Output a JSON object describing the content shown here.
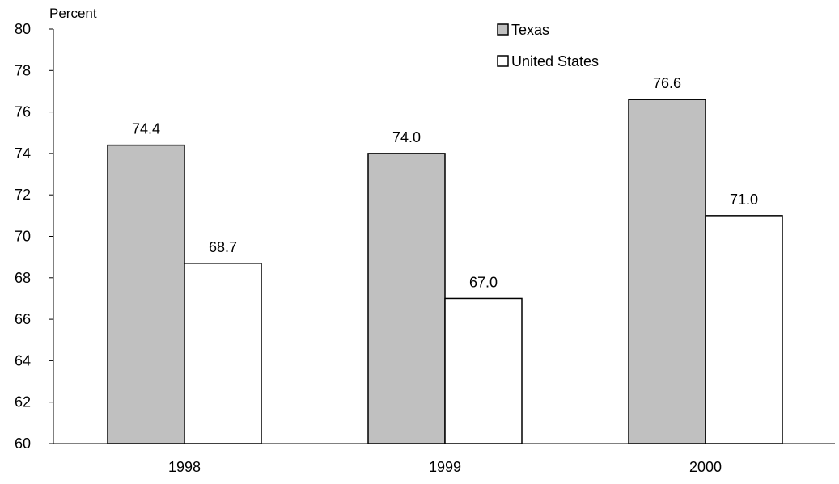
{
  "chart_data": {
    "type": "bar",
    "title": "",
    "xlabel": "",
    "ylabel": "Percent",
    "ylim": [
      60,
      80
    ],
    "yticks": [
      60,
      62,
      64,
      66,
      68,
      70,
      72,
      74,
      76,
      78,
      80
    ],
    "categories": [
      "1998",
      "1999",
      "2000"
    ],
    "series": [
      {
        "name": "Texas",
        "values": [
          74.4,
          74.0,
          76.6
        ],
        "labels": [
          "74.4",
          "74.0",
          "76.6"
        ],
        "color": "#c0c0c0"
      },
      {
        "name": "United States",
        "values": [
          68.7,
          67.0,
          71.0
        ],
        "labels": [
          "68.7",
          "67.0",
          "71.0"
        ],
        "color": "#ffffff"
      }
    ],
    "grid": false,
    "legend_position": "top-right"
  }
}
